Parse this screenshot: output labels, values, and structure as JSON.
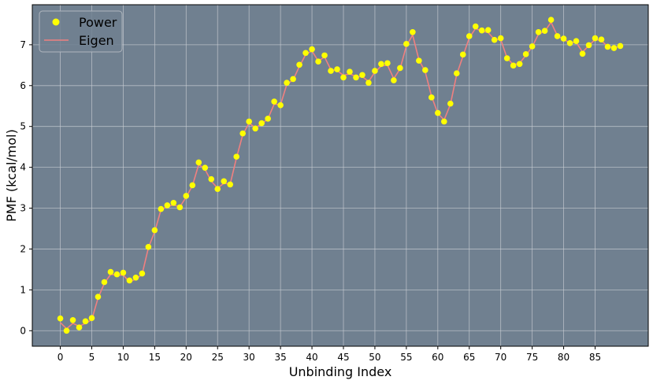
{
  "chart_data": {
    "type": "line",
    "xlabel": "Unbinding Index",
    "ylabel": "PMF (kcal/mol)",
    "xlim": [
      -4.45,
      93.45
    ],
    "ylim": [
      -0.38,
      7.98
    ],
    "xticks": [
      0,
      5,
      10,
      15,
      20,
      25,
      30,
      35,
      40,
      45,
      50,
      55,
      60,
      65,
      70,
      75,
      80,
      85
    ],
    "yticks": [
      0,
      1,
      2,
      3,
      4,
      5,
      6,
      7
    ],
    "grid": true,
    "legend_position": "top-left",
    "colors": {
      "background": "#708090",
      "power": "#ffff00",
      "eigen": "#f08080",
      "grid": "#c8ccd2"
    },
    "series": [
      {
        "name": "Power",
        "style": "scatter",
        "x": [
          0,
          1,
          2,
          3,
          4,
          5,
          6,
          7,
          8,
          9,
          10,
          11,
          12,
          13,
          14,
          15,
          16,
          17,
          18,
          19,
          20,
          21,
          22,
          23,
          24,
          25,
          26,
          27,
          28,
          29,
          30,
          31,
          32,
          33,
          34,
          35,
          36,
          37,
          38,
          39,
          40,
          41,
          42,
          43,
          44,
          45,
          46,
          47,
          48,
          49,
          50,
          51,
          52,
          53,
          54,
          55,
          56,
          57,
          58,
          59,
          60,
          61,
          62,
          63,
          64,
          65,
          66,
          67,
          68,
          69,
          70,
          71,
          72,
          73,
          74,
          75,
          76,
          77,
          78,
          79,
          80,
          81,
          82,
          83,
          84,
          85,
          86,
          87,
          88,
          89
        ],
        "values": [
          0.3,
          0.0,
          0.26,
          0.08,
          0.23,
          0.31,
          0.83,
          1.19,
          1.44,
          1.38,
          1.42,
          1.23,
          1.3,
          1.4,
          2.05,
          2.46,
          2.98,
          3.07,
          3.13,
          3.02,
          3.3,
          3.56,
          4.12,
          3.99,
          3.71,
          3.47,
          3.66,
          3.58,
          4.26,
          4.83,
          5.12,
          4.95,
          5.08,
          5.19,
          5.61,
          5.52,
          6.07,
          6.16,
          6.51,
          6.8,
          6.89,
          6.59,
          6.74,
          6.36,
          6.4,
          6.2,
          6.34,
          6.2,
          6.26,
          6.07,
          6.36,
          6.53,
          6.55,
          6.13,
          6.43,
          7.02,
          7.31,
          6.61,
          6.38,
          5.71,
          5.33,
          5.12,
          5.56,
          6.3,
          6.76,
          7.21,
          7.45,
          7.35,
          7.36,
          7.12,
          7.16,
          6.67,
          6.49,
          6.53,
          6.77,
          6.96,
          7.31,
          7.34,
          7.61,
          7.21,
          7.15,
          7.04,
          7.09,
          6.78,
          6.99,
          7.16,
          7.13,
          6.95,
          6.92,
          6.97
        ]
      },
      {
        "name": "Eigen",
        "style": "line",
        "x": [
          0,
          1,
          2,
          3,
          4,
          5,
          6,
          7,
          8,
          9,
          10,
          11,
          12,
          13,
          14,
          15,
          16,
          17,
          18,
          19,
          20,
          21,
          22,
          23,
          24,
          25,
          26,
          27,
          28,
          29,
          30,
          31,
          32,
          33,
          34,
          35,
          36,
          37,
          38,
          39,
          40,
          41,
          42,
          43,
          44,
          45,
          46,
          47,
          48,
          49,
          50,
          51,
          52,
          53,
          54,
          55,
          56,
          57,
          58,
          59,
          60,
          61,
          62,
          63,
          64,
          65,
          66,
          67,
          68,
          69,
          70,
          71,
          72,
          73,
          74,
          75,
          76,
          77,
          78,
          79,
          80,
          81,
          82,
          83,
          84,
          85,
          86,
          87,
          88,
          89
        ],
        "values": [
          0.2,
          0.05,
          0.18,
          0.11,
          0.18,
          0.27,
          0.8,
          1.16,
          1.38,
          1.36,
          1.36,
          1.2,
          1.26,
          1.38,
          2.03,
          2.42,
          2.96,
          3.04,
          3.08,
          3.03,
          3.27,
          3.55,
          4.07,
          3.95,
          3.66,
          3.49,
          3.61,
          3.59,
          4.23,
          4.8,
          5.08,
          4.97,
          5.06,
          5.19,
          5.55,
          5.53,
          6.03,
          6.14,
          6.47,
          6.76,
          6.85,
          6.6,
          6.7,
          6.39,
          6.37,
          6.25,
          6.29,
          6.22,
          6.22,
          6.1,
          6.33,
          6.48,
          6.5,
          6.17,
          6.41,
          6.97,
          7.24,
          6.63,
          6.34,
          5.74,
          5.32,
          5.16,
          5.54,
          6.27,
          6.72,
          7.17,
          7.4,
          7.33,
          7.3,
          7.13,
          7.13,
          6.68,
          6.51,
          6.55,
          6.74,
          6.95,
          7.26,
          7.33,
          7.55,
          7.22,
          7.13,
          7.05,
          7.06,
          6.82,
          6.98,
          7.13,
          7.1,
          6.96,
          6.93,
          6.96
        ]
      }
    ]
  }
}
